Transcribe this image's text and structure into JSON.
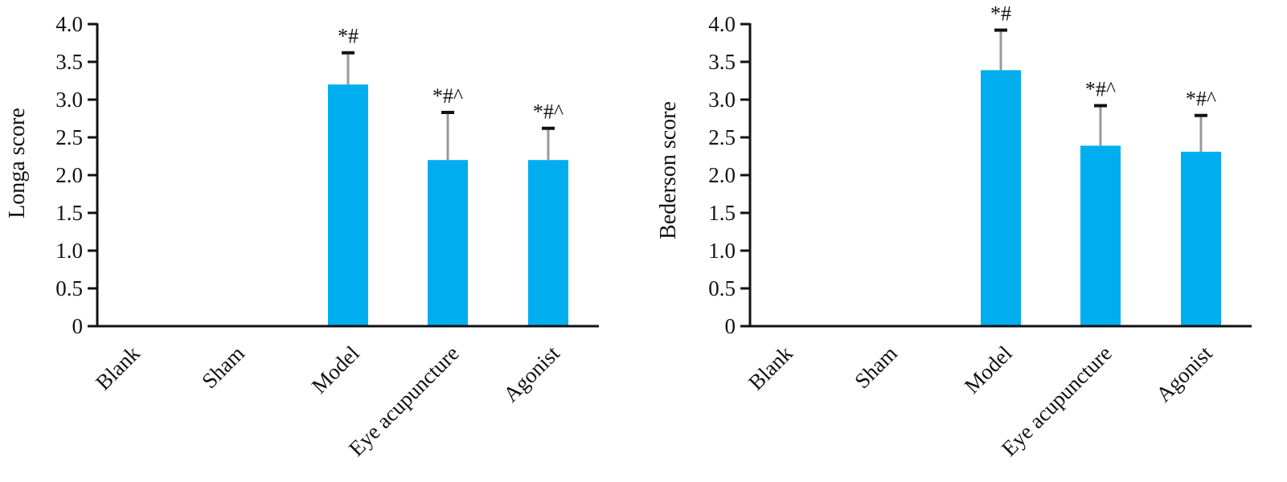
{
  "colors": {
    "bar": "#00aeef",
    "axis": "#111111",
    "error_cap": "#111111",
    "error_stem": "#999999"
  },
  "chart_data": [
    {
      "type": "bar",
      "title": "",
      "xlabel": "",
      "ylabel": "Longa score",
      "ylim": [
        0,
        4.0
      ],
      "yticks": [
        "0",
        "0.5",
        "1.0",
        "1.5",
        "2.0",
        "2.5",
        "3.0",
        "3.5",
        "4.0"
      ],
      "categories": [
        "Blank",
        "Sham",
        "Model",
        "Eye acupuncture",
        "Agonist"
      ],
      "values": [
        0,
        0,
        3.2,
        2.2,
        2.2
      ],
      "error_upper": [
        0,
        0,
        3.62,
        2.83,
        2.62
      ],
      "significance": [
        "",
        "",
        "*#",
        "*#^",
        "*#^"
      ],
      "grid": false,
      "legend": "none"
    },
    {
      "type": "bar",
      "title": "",
      "xlabel": "",
      "ylabel": "Bederson score",
      "ylim": [
        0,
        4.0
      ],
      "yticks": [
        "0",
        "0.5",
        "1.0",
        "1.5",
        "2.0",
        "2.5",
        "3.0",
        "3.5",
        "4.0"
      ],
      "categories": [
        "Blank",
        "Sham",
        "Model",
        "Eye acupuncture",
        "Agonist"
      ],
      "values": [
        0,
        0,
        3.39,
        2.39,
        2.31
      ],
      "error_upper": [
        0,
        0,
        3.92,
        2.92,
        2.79
      ],
      "significance": [
        "",
        "",
        "*#",
        "*#^",
        "*#^"
      ],
      "grid": false,
      "legend": "none"
    }
  ]
}
